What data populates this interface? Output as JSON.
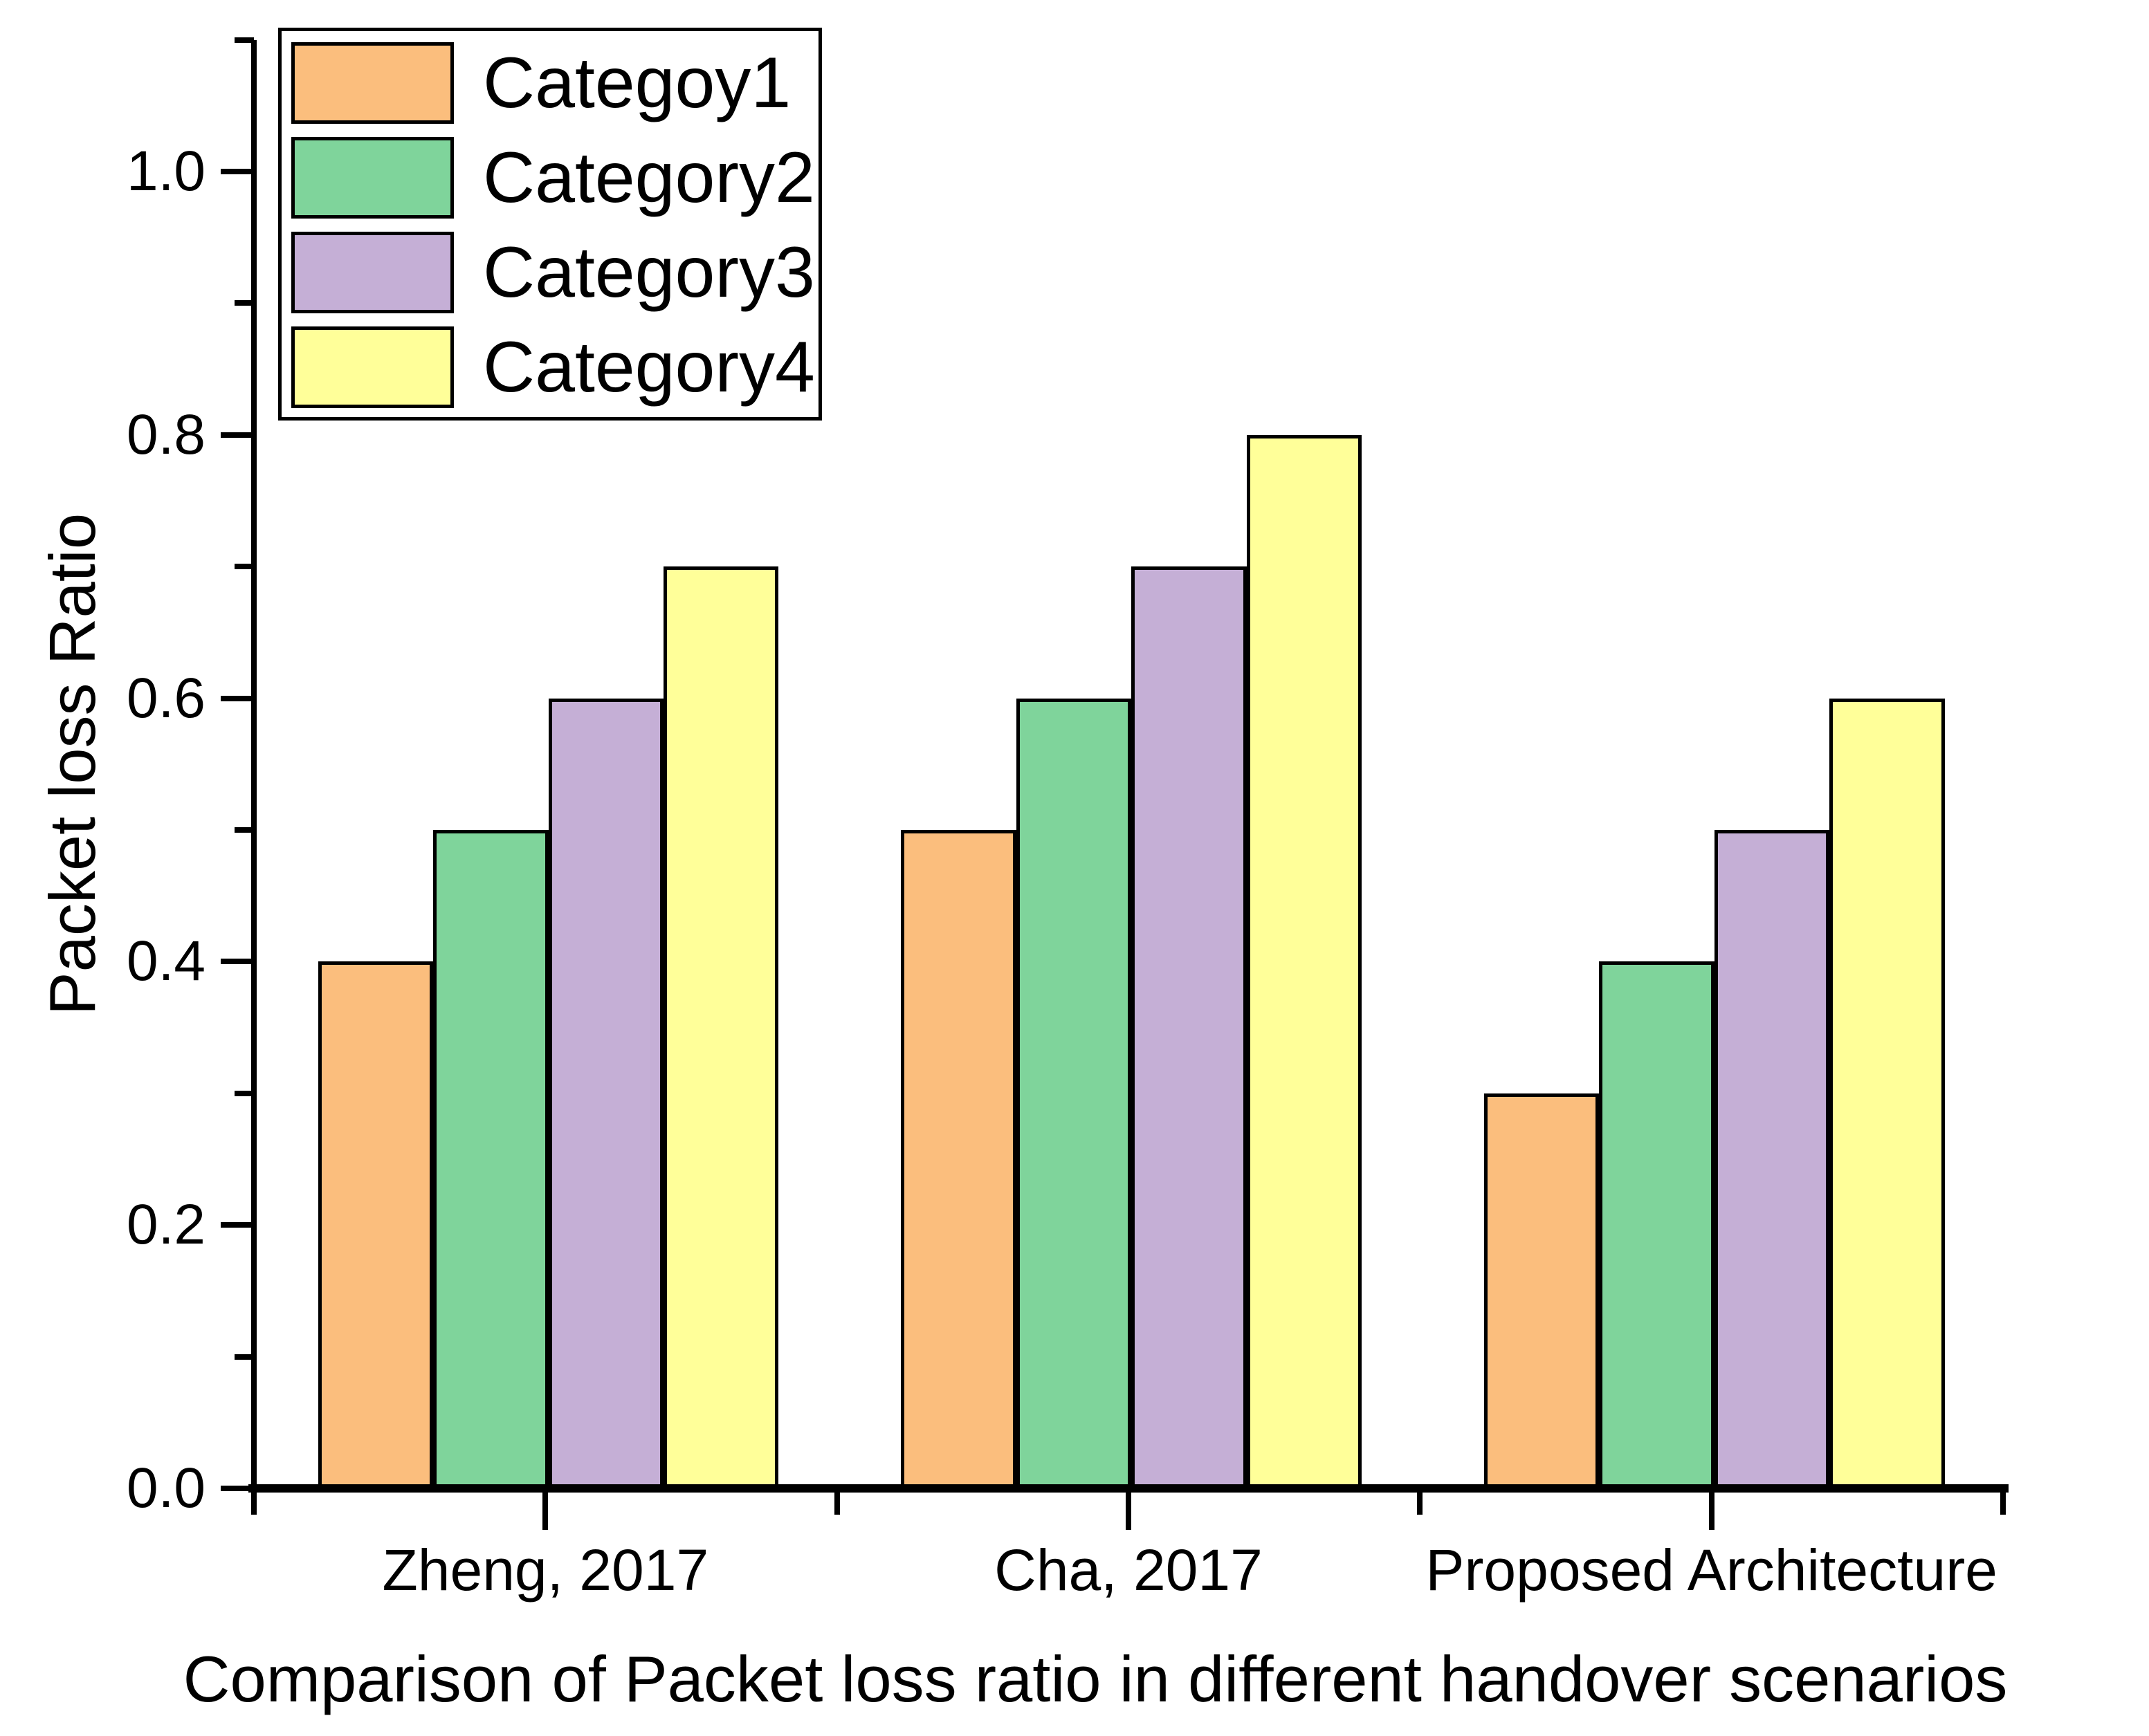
{
  "figure": {
    "title": "Comparison of Packet loss ratio in different handover scenarios",
    "y_axis_label": "Packet loss Ratio"
  },
  "legend": {
    "position": "top-left",
    "entries": [
      {
        "label": "Categoy1",
        "color": "#FBBE7D"
      },
      {
        "label": "Category2",
        "color": "#7FD49B"
      },
      {
        "label": "Category3",
        "color": "#C5AFD6"
      },
      {
        "label": "Category4",
        "color": "#FFFF99"
      }
    ]
  },
  "chart_data": {
    "type": "bar",
    "title": "Comparison of Packet loss ratio in different handover scenarios",
    "xlabel": "",
    "ylabel": "Packet loss Ratio",
    "categories": [
      "Zheng, 2017",
      "Cha, 2017",
      "Proposed Architecture"
    ],
    "series": [
      {
        "name": "Categoy1",
        "color": "#FBBE7D",
        "values": [
          0.4,
          0.5,
          0.3
        ]
      },
      {
        "name": "Category2",
        "color": "#7FD49B",
        "values": [
          0.5,
          0.6,
          0.4
        ]
      },
      {
        "name": "Category3",
        "color": "#C5AFD6",
        "values": [
          0.6,
          0.7,
          0.5
        ]
      },
      {
        "name": "Category4",
        "color": "#FFFF99",
        "values": [
          0.7,
          0.8,
          0.6
        ]
      }
    ],
    "ylim": [
      0,
      1.1
    ],
    "yticks_major": [
      0.0,
      0.2,
      0.4,
      0.6,
      0.8,
      1.0
    ],
    "ytick_labels": [
      "0.0",
      "0.2",
      "0.4",
      "0.6",
      "0.8",
      "1.0"
    ],
    "yticks_minor": [
      0.1,
      0.3,
      0.5,
      0.7,
      0.9,
      1.1
    ],
    "bar_outline_color": "#000000",
    "grid": false,
    "legend_position": "top-left"
  }
}
